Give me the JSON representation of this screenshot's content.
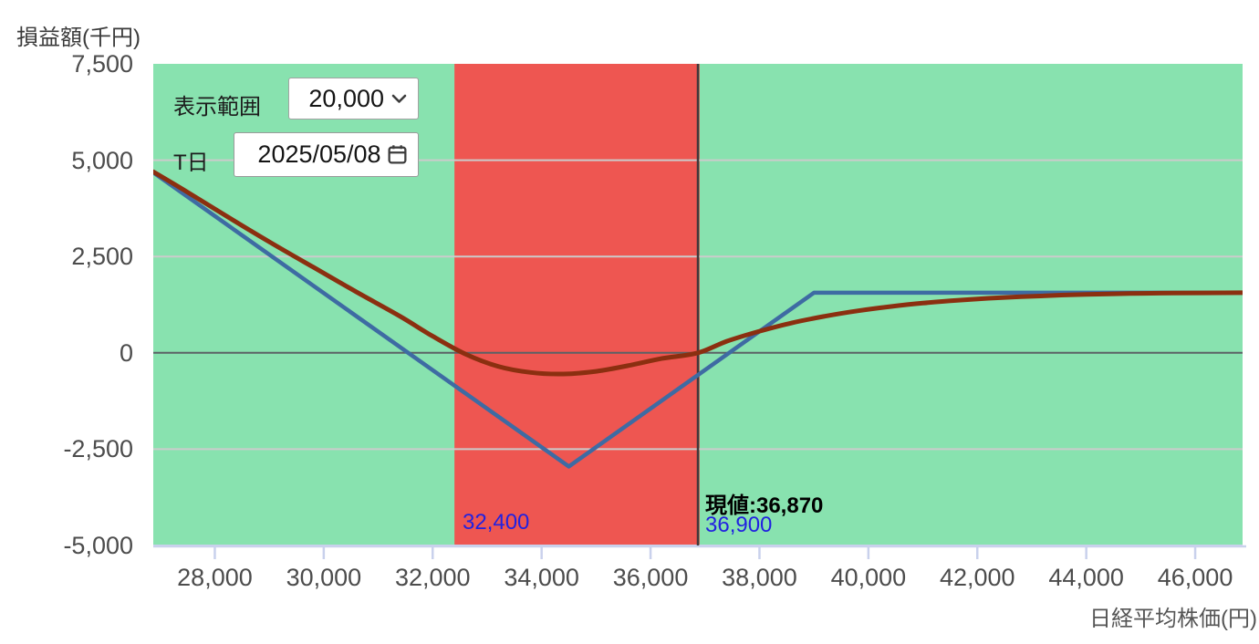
{
  "controls": {
    "range_label": "表示範囲",
    "range_value": "20,000",
    "date_label": "T日",
    "date_value": "2025/05/08"
  },
  "chart_data": {
    "type": "line",
    "title": "",
    "xlabel": "日経平均株価(円)",
    "ylabel": "損益額(千円)",
    "xlim": [
      26870,
      46870
    ],
    "ylim": [
      -5000,
      7500
    ],
    "x_ticks": [
      28000,
      30000,
      32000,
      34000,
      36000,
      38000,
      40000,
      42000,
      44000,
      46000
    ],
    "y_ticks": [
      7500,
      5000,
      2500,
      0,
      -2500,
      -5000
    ],
    "grid": true,
    "legend": "none",
    "band": {
      "from": 32400,
      "to": 36900
    },
    "current_price": 36870,
    "annotations": {
      "band_left_label": "32,400",
      "current_label": "現値:36,870",
      "band_right_label": "36,900"
    },
    "series": [
      {
        "id": "expiry-payoff-line",
        "color": "#3e6ba3",
        "width": 4.5,
        "smooth": false,
        "points": [
          [
            26870,
            4680
          ],
          [
            34500,
            -2950
          ],
          [
            39000,
            1560
          ],
          [
            46870,
            1560
          ]
        ]
      },
      {
        "id": "t-day-value-curve",
        "color": "#8b2f10",
        "width": 5,
        "smooth": true,
        "points": [
          [
            26870,
            4700
          ],
          [
            27500,
            4170
          ],
          [
            28200,
            3560
          ],
          [
            29000,
            2880
          ],
          [
            29800,
            2230
          ],
          [
            30600,
            1580
          ],
          [
            31400,
            950
          ],
          [
            32000,
            430
          ],
          [
            32600,
            -30
          ],
          [
            33200,
            -350
          ],
          [
            33800,
            -510
          ],
          [
            34400,
            -550
          ],
          [
            35000,
            -480
          ],
          [
            35600,
            -330
          ],
          [
            36200,
            -150
          ],
          [
            36870,
            0
          ],
          [
            37400,
            300
          ],
          [
            38000,
            560
          ],
          [
            38600,
            780
          ],
          [
            39200,
            950
          ],
          [
            39800,
            1090
          ],
          [
            40400,
            1200
          ],
          [
            41000,
            1290
          ],
          [
            41600,
            1360
          ],
          [
            42200,
            1415
          ],
          [
            42800,
            1455
          ],
          [
            43400,
            1490
          ],
          [
            44000,
            1515
          ],
          [
            44800,
            1538
          ],
          [
            45600,
            1552
          ],
          [
            46870,
            1560
          ]
        ]
      }
    ],
    "colors": {
      "plot_background": "#88e2af",
      "band_fill": "#ee5651",
      "gridline": "#cbcbcb",
      "zero_line": "#5b6165",
      "axis_line": "#c9d1ec",
      "tick_mark": "#c9d1ec",
      "current_price_line": "#3f383b",
      "tick_label": "#4c4c4c",
      "blue_label": "#2222e0"
    }
  }
}
